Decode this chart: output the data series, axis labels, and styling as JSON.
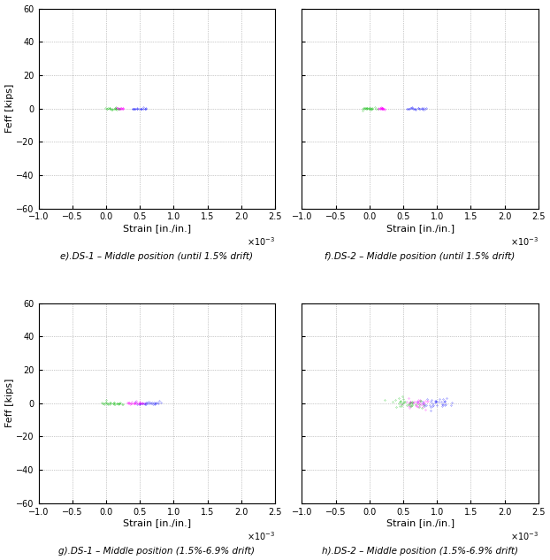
{
  "subplot_labels": [
    "e).DS-1 – Middle position (until 1.5% drift)",
    "f).DS-2 – Middle position (until 1.5% drift)",
    "g).DS-1 – Middle position (1.5%-6.9% drift)",
    "h).DS-2 – Middle position (1.5%-6.9% drift)"
  ],
  "ylabel": "Feff [kips]",
  "xlabel": "Strain [in./in.]",
  "xlim": [
    -1,
    2.5
  ],
  "ylim": [
    -60,
    60
  ],
  "xticks": [
    -1,
    -0.5,
    0,
    0.5,
    1,
    1.5,
    2,
    2.5
  ],
  "yticks": [
    -60,
    -40,
    -20,
    0,
    20,
    40,
    60
  ],
  "col_north": "#0000FF",
  "col_south": "#FF00FF",
  "col_east": "#00BB00",
  "background": "#FFFFFF",
  "grid_color": "#999999"
}
